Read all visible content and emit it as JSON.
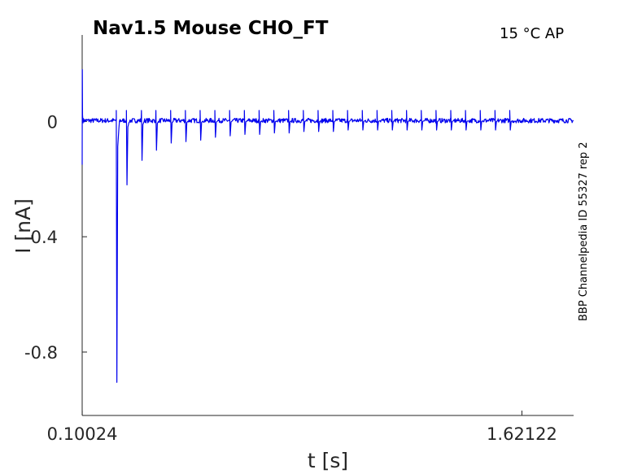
{
  "chart_data": {
    "type": "line",
    "title": "Nav1.5  Mouse  CHO_FT",
    "conditions": "15 °C  AP",
    "side_label": "BBP Channelpedia ID 55327 rep 2",
    "xlabel": "t [s]",
    "ylabel": "I [nA]",
    "x_ticks": [
      "0.10024",
      "1.62122"
    ],
    "y_ticks": [
      "0",
      "-0.4",
      "-0.8"
    ],
    "x_tick_values": [
      0.10024,
      1.62122
    ],
    "y_tick_values": [
      0,
      -0.4,
      -0.8
    ],
    "xlim": [
      0.1,
      1.8
    ],
    "ylim": [
      -1.02,
      0.3
    ],
    "grid": false,
    "line_color": "#0000ee",
    "baseline": 0.003,
    "initial_transient": {
      "x": 0.1,
      "peak": 0.18,
      "trough": -0.15
    },
    "series": [
      {
        "spikes": [
          {
            "t": 0.22,
            "peak": -0.905
          },
          {
            "t": 0.255,
            "peak": -0.22
          },
          {
            "t": 0.307,
            "peak": -0.135
          },
          {
            "t": 0.357,
            "peak": -0.1
          },
          {
            "t": 0.408,
            "peak": -0.075
          },
          {
            "t": 0.459,
            "peak": -0.07
          },
          {
            "t": 0.51,
            "peak": -0.065
          },
          {
            "t": 0.561,
            "peak": -0.055
          },
          {
            "t": 0.612,
            "peak": -0.05
          },
          {
            "t": 0.663,
            "peak": -0.045
          },
          {
            "t": 0.714,
            "peak": -0.045
          },
          {
            "t": 0.765,
            "peak": -0.04
          },
          {
            "t": 0.816,
            "peak": -0.04
          },
          {
            "t": 0.867,
            "peak": -0.035
          },
          {
            "t": 0.918,
            "peak": -0.035
          },
          {
            "t": 0.969,
            "peak": -0.035
          },
          {
            "t": 1.02,
            "peak": -0.03
          },
          {
            "t": 1.071,
            "peak": -0.03
          },
          {
            "t": 1.122,
            "peak": -0.03
          },
          {
            "t": 1.173,
            "peak": -0.03
          },
          {
            "t": 1.224,
            "peak": -0.03
          },
          {
            "t": 1.275,
            "peak": -0.03
          },
          {
            "t": 1.326,
            "peak": -0.03
          },
          {
            "t": 1.377,
            "peak": -0.03
          },
          {
            "t": 1.428,
            "peak": -0.03
          },
          {
            "t": 1.479,
            "peak": -0.03
          },
          {
            "t": 1.53,
            "peak": -0.03
          },
          {
            "t": 1.581,
            "peak": -0.03
          }
        ]
      }
    ]
  }
}
